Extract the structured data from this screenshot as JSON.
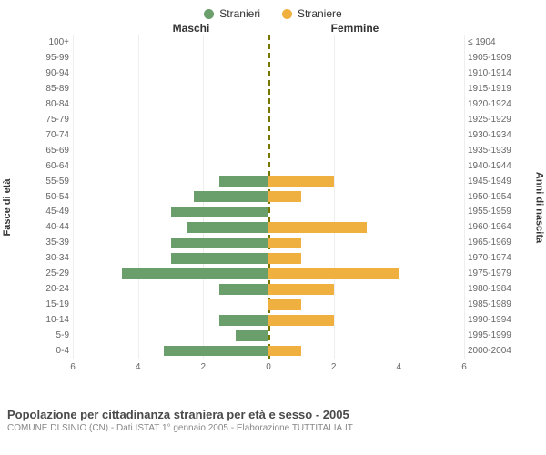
{
  "legend": {
    "male": {
      "label": "Stranieri",
      "color": "#6a9e6a"
    },
    "female": {
      "label": "Straniere",
      "color": "#f0b040"
    }
  },
  "titles": {
    "left": "Maschi",
    "right": "Femmine"
  },
  "y_left_title": "Fasce di età",
  "y_right_title": "Anni di nascita",
  "x_axis": {
    "max": 6,
    "ticks": [
      6,
      4,
      2,
      0,
      2,
      4,
      6
    ]
  },
  "bar_colors": {
    "male": "#6a9e6a",
    "female": "#f0b040"
  },
  "grid_color": "#eeeeee",
  "center_line_color": "#777700",
  "background": "#ffffff",
  "rows": [
    {
      "age": "100+",
      "birth": "≤ 1904",
      "m": 0,
      "f": 0
    },
    {
      "age": "95-99",
      "birth": "1905-1909",
      "m": 0,
      "f": 0
    },
    {
      "age": "90-94",
      "birth": "1910-1914",
      "m": 0,
      "f": 0
    },
    {
      "age": "85-89",
      "birth": "1915-1919",
      "m": 0,
      "f": 0
    },
    {
      "age": "80-84",
      "birth": "1920-1924",
      "m": 0,
      "f": 0
    },
    {
      "age": "75-79",
      "birth": "1925-1929",
      "m": 0,
      "f": 0
    },
    {
      "age": "70-74",
      "birth": "1930-1934",
      "m": 0,
      "f": 0
    },
    {
      "age": "65-69",
      "birth": "1935-1939",
      "m": 0,
      "f": 0
    },
    {
      "age": "60-64",
      "birth": "1940-1944",
      "m": 0,
      "f": 0
    },
    {
      "age": "55-59",
      "birth": "1945-1949",
      "m": 1.5,
      "f": 2
    },
    {
      "age": "50-54",
      "birth": "1950-1954",
      "m": 2.3,
      "f": 1
    },
    {
      "age": "45-49",
      "birth": "1955-1959",
      "m": 3,
      "f": 0
    },
    {
      "age": "40-44",
      "birth": "1960-1964",
      "m": 2.5,
      "f": 3
    },
    {
      "age": "35-39",
      "birth": "1965-1969",
      "m": 3,
      "f": 1
    },
    {
      "age": "30-34",
      "birth": "1970-1974",
      "m": 3,
      "f": 1
    },
    {
      "age": "25-29",
      "birth": "1975-1979",
      "m": 4.5,
      "f": 4
    },
    {
      "age": "20-24",
      "birth": "1980-1984",
      "m": 1.5,
      "f": 2
    },
    {
      "age": "15-19",
      "birth": "1985-1989",
      "m": 0,
      "f": 1
    },
    {
      "age": "10-14",
      "birth": "1990-1994",
      "m": 1.5,
      "f": 2
    },
    {
      "age": "5-9",
      "birth": "1995-1999",
      "m": 1,
      "f": 0
    },
    {
      "age": "0-4",
      "birth": "2000-2004",
      "m": 3.2,
      "f": 1
    }
  ],
  "caption": {
    "line1": "Popolazione per cittadinanza straniera per età e sesso - 2005",
    "line2": "COMUNE DI SINIO (CN) - Dati ISTAT 1° gennaio 2005 - Elaborazione TUTTITALIA.IT"
  },
  "fonts": {
    "legend": 12,
    "row_labels": 10,
    "caption1": 13,
    "caption2": 10
  }
}
